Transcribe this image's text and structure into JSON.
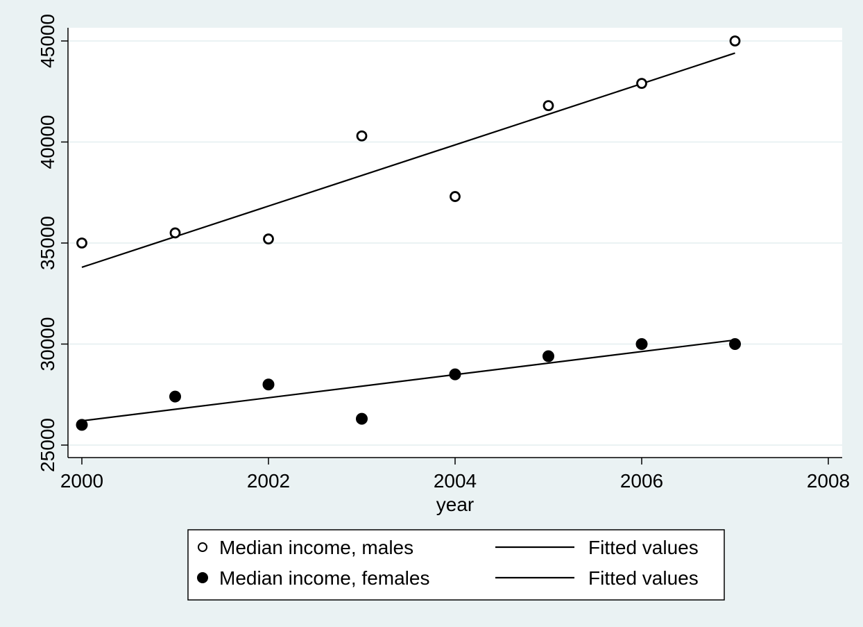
{
  "chart_data": {
    "type": "scatter",
    "title": "",
    "xlabel": "year",
    "ylabel": "",
    "xlim": [
      2000,
      2008
    ],
    "ylim": [
      25000,
      45000
    ],
    "x_ticks": [
      "2000",
      "2002",
      "2004",
      "2006",
      "2008"
    ],
    "y_ticks": [
      "25000",
      "30000",
      "35000",
      "40000",
      "45000"
    ],
    "grid": "horizontal",
    "legend_position": "bottom",
    "colors": {
      "background": "#eaf2f3",
      "plot_area": "#ffffff",
      "gridline": "#eaf2f3",
      "marks": "#000000"
    },
    "series": [
      {
        "name": "Median income, males",
        "kind": "scatter",
        "marker": "hollow-circle",
        "x": [
          2000,
          2001,
          2002,
          2003,
          2004,
          2005,
          2006,
          2007
        ],
        "y": [
          35000,
          35500,
          35200,
          40300,
          37300,
          41800,
          42900,
          45000
        ]
      },
      {
        "name": "Median income, females",
        "kind": "scatter",
        "marker": "filled-circle",
        "x": [
          2000,
          2001,
          2002,
          2003,
          2004,
          2005,
          2006,
          2007
        ],
        "y": [
          26000,
          27400,
          28000,
          26300,
          28500,
          29400,
          30000,
          30000
        ]
      },
      {
        "name": "Fitted values",
        "kind": "line",
        "x": [
          2000,
          2007
        ],
        "y": [
          33800,
          44400
        ]
      },
      {
        "name": "Fitted values",
        "kind": "line",
        "x": [
          2000,
          2007
        ],
        "y": [
          26200,
          30200
        ]
      }
    ]
  }
}
